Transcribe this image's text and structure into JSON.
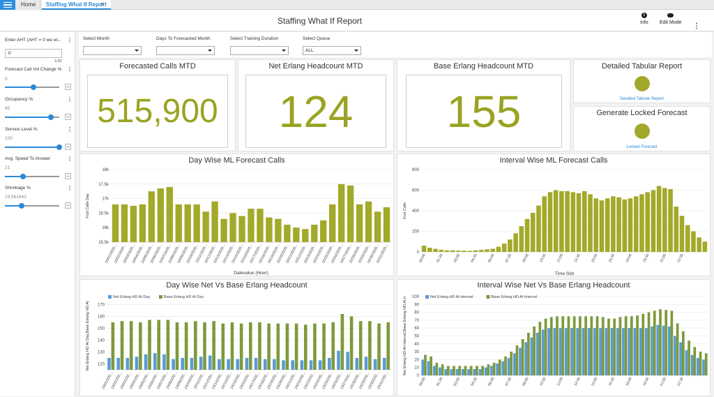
{
  "tabs": {
    "home": "Home",
    "report": "Staffing What If Report"
  },
  "header": {
    "title": "Staffing What If Report",
    "info_label": "Info",
    "edit_label": "Edit Mode"
  },
  "params": [
    {
      "label": "Enter AHT (AHT = 0 we wi...",
      "value": "0",
      "counter": "1/30",
      "type": "input"
    },
    {
      "label": "Forecast Call Vol Change %",
      "value": "0",
      "type": "slider",
      "level": 0.52
    },
    {
      "label": "Occupancy %",
      "value": "85",
      "type": "slider",
      "level": 0.84
    },
    {
      "label": "Service Level %",
      "value": "100",
      "type": "slider",
      "level": 1.0
    },
    {
      "label": "Avg. Speed To Answer",
      "value": "21",
      "type": "slider",
      "level": 0.33
    },
    {
      "label": "Shrinkage %",
      "value": "23.561643",
      "type": "slider",
      "level": 0.31
    }
  ],
  "filters": [
    {
      "label": "Select Month",
      "value": ""
    },
    {
      "label": "Days To Forecasted Month",
      "value": ""
    },
    {
      "label": "Select Training Duration",
      "value": ""
    },
    {
      "label": "Select Queue",
      "value": "ALL"
    }
  ],
  "kpis": [
    {
      "title": "Forecasted Calls MTD",
      "value": "515,900"
    },
    {
      "title": "Net Erlang Headcount MTD",
      "value": "124"
    },
    {
      "title": "Base Erlang Headcount MTD",
      "value": "155"
    }
  ],
  "actions": [
    {
      "title": "Detailed Tabular Report",
      "link": "Detailed Tabular Report"
    },
    {
      "title": "Generate Locked Forecast",
      "link": "Locked Forecast"
    }
  ],
  "colors": {
    "olive": "#a3a929",
    "blue": "#5b9bd5",
    "green": "#7d9a3b",
    "accent": "#2a89d8"
  },
  "chart_data": [
    {
      "id": "day-calls",
      "type": "bar",
      "title": "Day Wise ML Forecast Calls",
      "xlabel": "Datevalue (Hour)",
      "ylabel": "Fcst Calls Day",
      "ylim": [
        15500,
        18000
      ],
      "yticks": [
        "15.5k",
        "16k",
        "16.5k",
        "17k",
        "17.5k",
        "18k"
      ],
      "ytick_values": [
        15500,
        16000,
        16500,
        17000,
        17500,
        18000
      ],
      "categories": [
        "10/01/2020",
        "10/02/2020",
        "10/03/2020",
        "10/04/2020",
        "10/05/2020",
        "10/06/2020",
        "10/07/2020",
        "10/08/2020",
        "10/09/2020",
        "10/10/2020",
        "10/11/2020",
        "10/12/2020",
        "10/13/2020",
        "10/14/2020",
        "10/15/2020",
        "10/16/2020",
        "10/17/2020",
        "10/18/2020",
        "10/19/2020",
        "10/20/2020",
        "10/21/2020",
        "10/22/2020",
        "10/23/2020",
        "10/24/2020",
        "10/25/2020",
        "10/26/2020",
        "10/27/2020",
        "10/28/2020",
        "10/29/2020",
        "10/30/2020",
        "10/31/2020"
      ],
      "tick_labels": [
        "10/01/2020...",
        "10/02/2020...",
        "10/03/2020...",
        "10/04/2020...",
        "10/05/2020...",
        "10/06/2020...",
        "10/07/2020...",
        "10/08/2020...",
        "10/09/2020...",
        "10/10/2020...",
        "10/11/2020...",
        "10/12/2020...",
        "10/13/2020...",
        "10/14/2020...",
        "10/15/2020...",
        "10/16/2020...",
        "10/17/2020...",
        "10/18/2020...",
        "10/19/2020...",
        "10/20/2020...",
        "10/21/2020...",
        "10/22/2020...",
        "10/23/2020...",
        "10/24/2020...",
        "10/25/2020...",
        "10/26/2020...",
        "10/27/2020...",
        "10/28/2020...",
        "10/29/2020...",
        "10/30/2020...",
        "10/31/2020..."
      ],
      "values": [
        16800,
        16800,
        16750,
        16800,
        17250,
        17350,
        17400,
        16800,
        16800,
        16800,
        16550,
        16900,
        16300,
        16500,
        16400,
        16650,
        16650,
        16350,
        16300,
        16100,
        16000,
        15950,
        16100,
        16250,
        16800,
        17500,
        17450,
        16800,
        16900,
        16550,
        16700
      ],
      "color": "#a3a929"
    },
    {
      "id": "interval-calls",
      "type": "bar",
      "title": "Interval Wise ML Forecast Calls",
      "xlabel": "Time Slot",
      "ylabel": "Fcst Calls",
      "ylim": [
        0,
        800
      ],
      "yticks": [
        "0",
        "200",
        "400",
        "600",
        "800"
      ],
      "ytick_values": [
        0,
        200,
        400,
        600,
        800
      ],
      "tick_labels": [
        "00:00",
        "01:30",
        "03:00",
        "04:30",
        "06:00",
        "07:30",
        "09:00",
        "10:30",
        "12:00",
        "13:30",
        "15:00",
        "16:30",
        "18:00",
        "19:30",
        "21:00",
        "22:30"
      ],
      "tick_every": 3,
      "values": [
        60,
        40,
        30,
        20,
        15,
        15,
        12,
        12,
        10,
        15,
        20,
        25,
        30,
        50,
        80,
        120,
        180,
        250,
        320,
        380,
        450,
        540,
        580,
        600,
        590,
        590,
        580,
        570,
        590,
        560,
        520,
        500,
        520,
        540,
        530,
        510,
        520,
        540,
        560,
        580,
        600,
        640,
        620,
        610,
        440,
        350,
        260,
        200,
        140,
        100
      ],
      "color": "#a3a929"
    },
    {
      "id": "day-headcount",
      "type": "bar",
      "title": "Day Wise Net Vs Base Erlang Headcount",
      "ylabel": "Net Erlang HD At Day,Base Erlang HD At",
      "ylim": [
        115,
        172
      ],
      "yticks": [
        "120",
        "130",
        "140",
        "150",
        "160",
        "170"
      ],
      "ytick_values": [
        120,
        130,
        140,
        150,
        160,
        170
      ],
      "tick_labels": [
        "10/01/202...",
        "10/02/202...",
        "10/03/202...",
        "10/04/202...",
        "10/05/202...",
        "10/06/202...",
        "10/07/202...",
        "10/08/202...",
        "10/09/202...",
        "10/10/202...",
        "10/11/202...",
        "10/12/202...",
        "10/13/202...",
        "10/14/202...",
        "10/15/202...",
        "10/16/202...",
        "10/17/202...",
        "10/18/202...",
        "10/19/202...",
        "10/20/202...",
        "10/21/202...",
        "10/22/202...",
        "10/23/202...",
        "10/24/202...",
        "10/25/202...",
        "10/26/202...",
        "10/27/202...",
        "10/28/202...",
        "10/29/202...",
        "10/30/202...",
        "10/31/202..."
      ],
      "series": [
        {
          "name": "Net Erlang HD At Day",
          "color": "#5b9bd5",
          "values": [
            125,
            125,
            125,
            126,
            128,
            129,
            128,
            124,
            125,
            125,
            126,
            127,
            124,
            124,
            124,
            125,
            125,
            124,
            124,
            123,
            123,
            123,
            123,
            123,
            125,
            131,
            130,
            125,
            126,
            124,
            125
          ]
        },
        {
          "name": "Base Erlang HD At Day",
          "color": "#7d9a3b",
          "values": [
            155,
            156,
            156,
            155,
            157,
            157,
            157,
            155,
            155,
            156,
            155,
            156,
            154,
            155,
            154,
            155,
            155,
            154,
            154,
            154,
            154,
            153,
            154,
            154,
            155,
            162,
            160,
            156,
            156,
            154,
            155
          ]
        }
      ]
    },
    {
      "id": "interval-headcount",
      "type": "bar",
      "title": "Interval Wise Net Vs Base Erlang Headcount",
      "ylabel": "Net Erlang HD At Interval,Base Erlang HD At Ir",
      "ylim": [
        0,
        100
      ],
      "yticks": [
        "0",
        "10",
        "20",
        "30",
        "40",
        "50",
        "60",
        "70",
        "80",
        "90",
        "100"
      ],
      "ytick_values": [
        0,
        10,
        20,
        30,
        40,
        50,
        60,
        70,
        80,
        90,
        100
      ],
      "tick_labels": [
        "00:00",
        "01:30",
        "03:00",
        "04:30",
        "06:00",
        "07:30",
        "09:00",
        "10:30",
        "12:00",
        "13:30",
        "15:00",
        "16:30",
        "18:00",
        "19:30",
        "21:00",
        "22:30"
      ],
      "tick_every": 3,
      "series": [
        {
          "name": "Net Erlang HD At Interval",
          "color": "#5b9bd5",
          "values": [
            20,
            18,
            12,
            10,
            8,
            8,
            8,
            8,
            8,
            8,
            8,
            10,
            12,
            15,
            18,
            22,
            28,
            35,
            42,
            48,
            54,
            58,
            60,
            60,
            60,
            60,
            60,
            60,
            60,
            60,
            60,
            60,
            60,
            60,
            60,
            60,
            60,
            60,
            60,
            60,
            62,
            64,
            63,
            62,
            50,
            42,
            32,
            26,
            22,
            20
          ]
        },
        {
          "name": "Base Erlang HD At Interval",
          "color": "#7d9a3b",
          "values": [
            26,
            24,
            16,
            14,
            12,
            12,
            12,
            12,
            12,
            12,
            12,
            14,
            16,
            20,
            24,
            30,
            38,
            46,
            54,
            62,
            68,
            72,
            74,
            75,
            75,
            75,
            75,
            75,
            75,
            75,
            75,
            74,
            72,
            72,
            74,
            75,
            75,
            76,
            78,
            80,
            82,
            84,
            83,
            82,
            66,
            56,
            44,
            36,
            30,
            28
          ]
        }
      ]
    }
  ]
}
